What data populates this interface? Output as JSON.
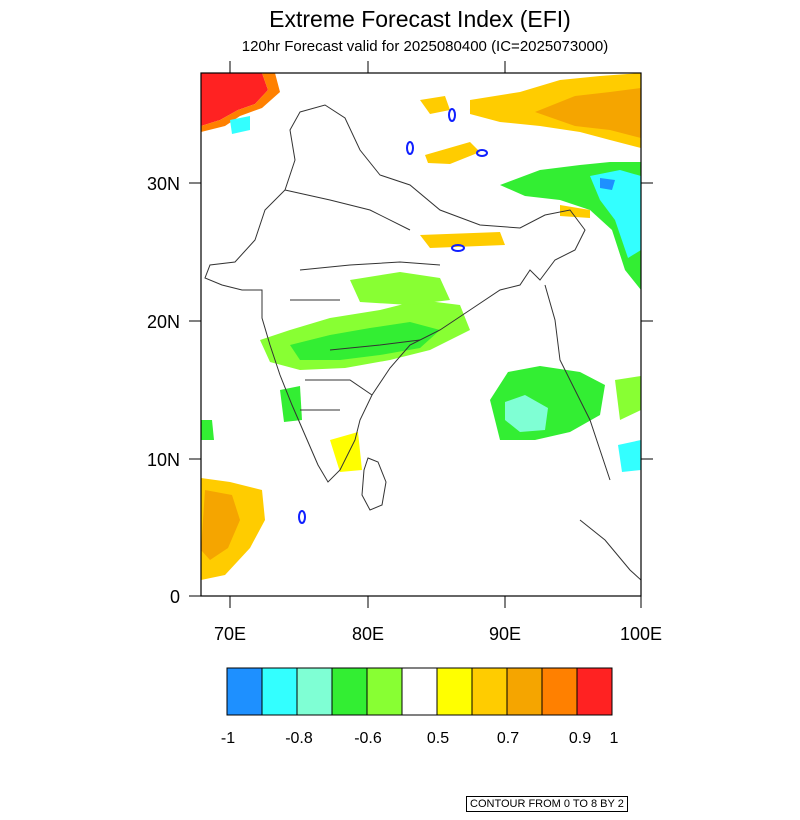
{
  "title": "Extreme Forecast Index (EFI)",
  "subtitle": "120hr Forecast valid for 2025080400 (IC=2025073000)",
  "axes": {
    "lat_labels": [
      "30N",
      "20N",
      "10N",
      "0"
    ],
    "lon_labels": [
      "70E",
      "80E",
      "90E",
      "100E"
    ]
  },
  "colorbar": {
    "colors": [
      "#1e90ff",
      "#33ffff",
      "#7fffd4",
      "#33ee33",
      "#88ff33",
      "#ffffff",
      "#ffff00",
      "#ffcc00",
      "#f5a500",
      "#ff8000",
      "#ff2222"
    ],
    "labels": [
      "-1",
      "-0.8",
      "-0.6",
      "0.5",
      "0.7",
      "0.9",
      "1"
    ]
  },
  "contour_note": "CONTOUR FROM 0 TO 8 BY 2"
}
